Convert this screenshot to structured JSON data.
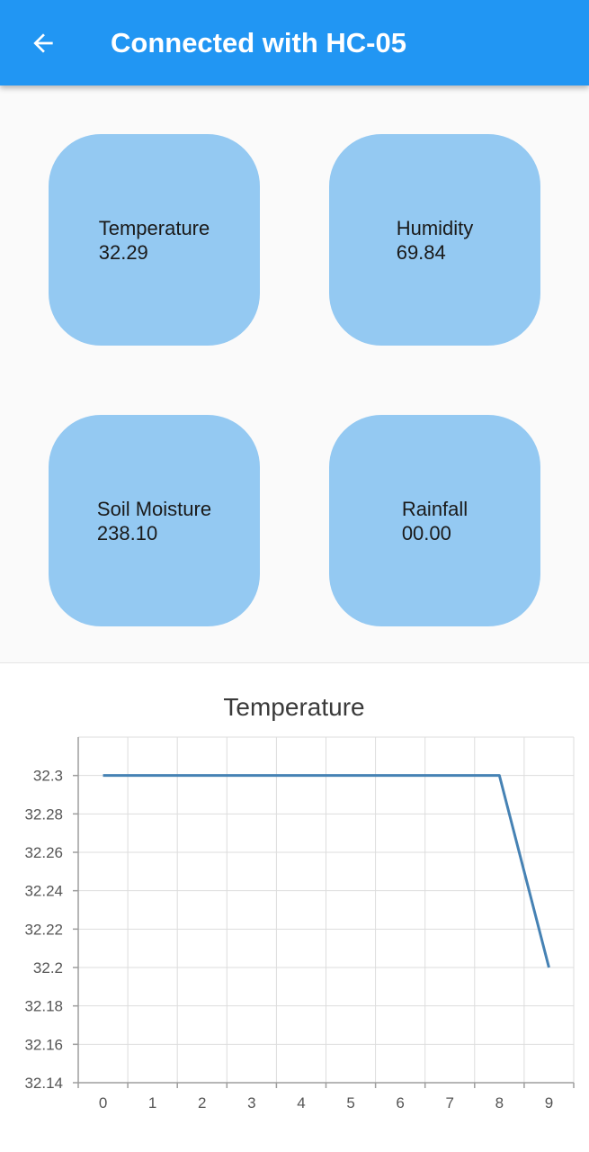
{
  "appbar": {
    "title": "Connected with HC-05",
    "back_icon": "arrow-back-icon",
    "color": "#2196f3"
  },
  "tiles": [
    {
      "label": "Temperature",
      "value": "32.29"
    },
    {
      "label": "Humidity",
      "value": "69.84"
    },
    {
      "label": "Soil Moisture",
      "value": "238.10"
    },
    {
      "label": "Rainfall",
      "value": "00.00"
    }
  ],
  "tile_color": "#94c9f2",
  "chart_data": {
    "type": "line",
    "title": "Temperature",
    "xlabel": "",
    "ylabel": "",
    "x": [
      0,
      1,
      2,
      3,
      4,
      5,
      6,
      7,
      8,
      9
    ],
    "xticks": [
      "0",
      "1",
      "2",
      "3",
      "4",
      "5",
      "6",
      "7",
      "8",
      "9"
    ],
    "yticks": [
      "32.3",
      "32.28",
      "32.26",
      "32.24",
      "32.22",
      "32.2",
      "32.18",
      "32.16",
      "32.14"
    ],
    "ylim": [
      32.14,
      32.32
    ],
    "grid": true,
    "series": [
      {
        "color": "#4682b4",
        "values": [
          32.3,
          32.3,
          32.3,
          32.3,
          32.3,
          32.3,
          32.3,
          32.3,
          32.3,
          32.2
        ]
      }
    ]
  }
}
